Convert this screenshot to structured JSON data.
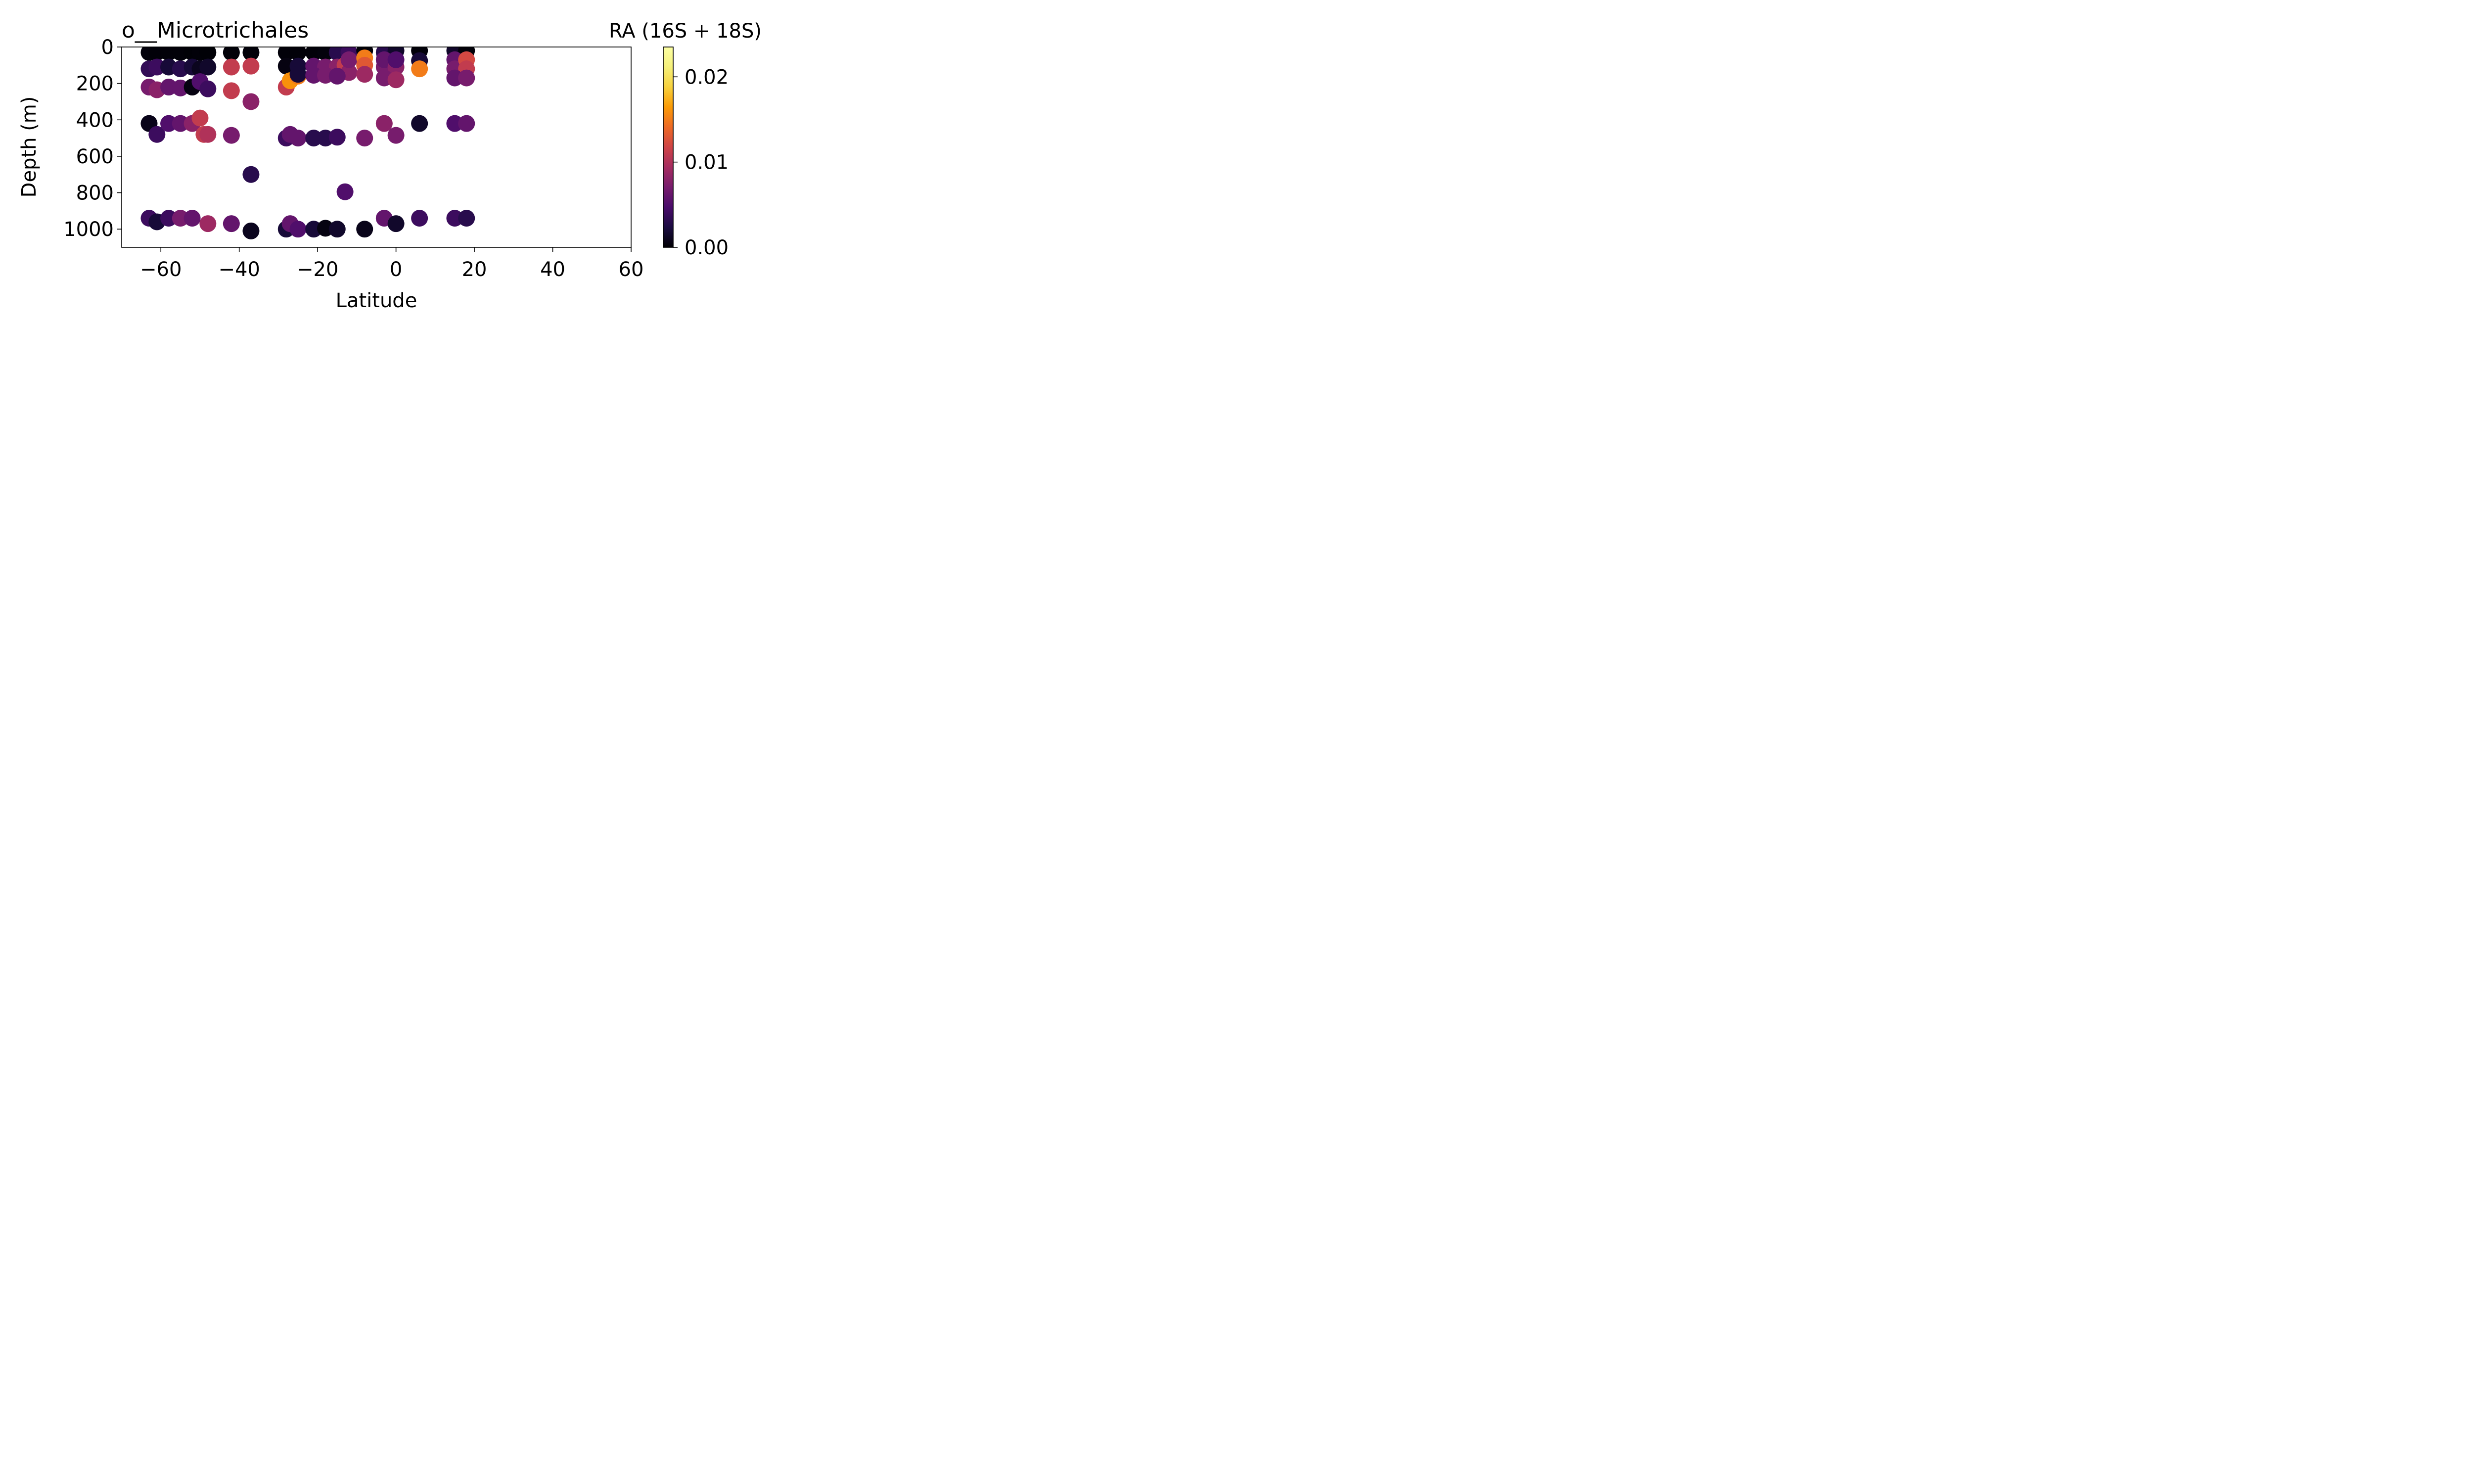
{
  "chart_data": {
    "type": "scatter",
    "title": "o__Microtrichales",
    "colorbar_title": "RA (16S + 18S)",
    "xlabel": "Latitude",
    "ylabel": "Depth (m)",
    "xlim": [
      -70,
      60
    ],
    "ylim": [
      1100,
      0
    ],
    "y_inverted": true,
    "xticks": [
      -60,
      -40,
      -20,
      0,
      20,
      40,
      60
    ],
    "yticks": [
      0,
      200,
      400,
      600,
      800,
      1000
    ],
    "xtick_labels": [
      "−60",
      "−40",
      "−20",
      "0",
      "20",
      "40",
      "60"
    ],
    "ytick_labels": [
      "0",
      "200",
      "400",
      "600",
      "800",
      "1000"
    ],
    "colormap": "inferno",
    "color_range": [
      0,
      0.0235
    ],
    "colorbar_ticks": [
      0.0,
      0.01,
      0.02
    ],
    "colorbar_tick_labels": [
      "0.00",
      "0.01",
      "0.02"
    ],
    "grid": false,
    "points": [
      {
        "x": -63,
        "y": 30,
        "ra": 0.0003
      },
      {
        "x": -61,
        "y": 30,
        "ra": 0.0002
      },
      {
        "x": -58,
        "y": 30,
        "ra": 0.0002
      },
      {
        "x": -55,
        "y": 30,
        "ra": 0.0002
      },
      {
        "x": -52,
        "y": 30,
        "ra": 0.0001
      },
      {
        "x": -50,
        "y": 30,
        "ra": 0.0002
      },
      {
        "x": -48,
        "y": 30,
        "ra": 0.0001
      },
      {
        "x": -42,
        "y": 30,
        "ra": 0.0002
      },
      {
        "x": -37,
        "y": 30,
        "ra": 0.0002
      },
      {
        "x": -28,
        "y": 30,
        "ra": 0.0002
      },
      {
        "x": -25,
        "y": 30,
        "ra": 0.0002
      },
      {
        "x": -21,
        "y": 30,
        "ra": 0.0002
      },
      {
        "x": -18,
        "y": 30,
        "ra": 0.0003
      },
      {
        "x": -15,
        "y": 30,
        "ra": 0.003
      },
      {
        "x": -12,
        "y": 30,
        "ra": 0.004
      },
      {
        "x": -8,
        "y": 20,
        "ra": 0.0002
      },
      {
        "x": -3,
        "y": 30,
        "ra": 0.003
      },
      {
        "x": 0,
        "y": 20,
        "ra": 0.0015
      },
      {
        "x": 6,
        "y": 20,
        "ra": 0.0002
      },
      {
        "x": 15,
        "y": 20,
        "ra": 0.0015
      },
      {
        "x": 18,
        "y": 20,
        "ra": 0.0002
      },
      {
        "x": -63,
        "y": 120,
        "ra": 0.0035
      },
      {
        "x": -61,
        "y": 110,
        "ra": 0.004
      },
      {
        "x": -58,
        "y": 110,
        "ra": 0.002
      },
      {
        "x": -55,
        "y": 120,
        "ra": 0.003
      },
      {
        "x": -52,
        "y": 110,
        "ra": 0.002
      },
      {
        "x": -50,
        "y": 120,
        "ra": 0.001
      },
      {
        "x": -48,
        "y": 110,
        "ra": 0.0015
      },
      {
        "x": -42,
        "y": 110,
        "ra": 0.011
      },
      {
        "x": -37,
        "y": 105,
        "ra": 0.011
      },
      {
        "x": -28,
        "y": 105,
        "ra": 0.0005
      },
      {
        "x": -25,
        "y": 105,
        "ra": 0.002
      },
      {
        "x": -21,
        "y": 105,
        "ra": 0.006
      },
      {
        "x": -18,
        "y": 110,
        "ra": 0.007
      },
      {
        "x": -15,
        "y": 110,
        "ra": 0.008
      },
      {
        "x": -13,
        "y": 100,
        "ra": 0.011
      },
      {
        "x": -12,
        "y": 140,
        "ra": 0.008
      },
      {
        "x": -12,
        "y": 70,
        "ra": 0.007
      },
      {
        "x": -8,
        "y": 60,
        "ra": 0.015
      },
      {
        "x": -8,
        "y": 100,
        "ra": 0.013
      },
      {
        "x": -3,
        "y": 110,
        "ra": 0.007
      },
      {
        "x": -3,
        "y": 70,
        "ra": 0.006
      },
      {
        "x": 0,
        "y": 110,
        "ra": 0.008
      },
      {
        "x": 0,
        "y": 70,
        "ra": 0.005
      },
      {
        "x": 6,
        "y": 75,
        "ra": 0.002
      },
      {
        "x": 6,
        "y": 120,
        "ra": 0.015
      },
      {
        "x": 15,
        "y": 70,
        "ra": 0.006
      },
      {
        "x": 15,
        "y": 120,
        "ra": 0.007
      },
      {
        "x": 18,
        "y": 70,
        "ra": 0.012
      },
      {
        "x": 18,
        "y": 120,
        "ra": 0.011
      },
      {
        "x": -63,
        "y": 220,
        "ra": 0.007
      },
      {
        "x": -61,
        "y": 235,
        "ra": 0.008
      },
      {
        "x": -58,
        "y": 220,
        "ra": 0.006
      },
      {
        "x": -55,
        "y": 225,
        "ra": 0.006
      },
      {
        "x": -52,
        "y": 220,
        "ra": 0.0005
      },
      {
        "x": -50,
        "y": 190,
        "ra": 0.005
      },
      {
        "x": -48,
        "y": 230,
        "ra": 0.004
      },
      {
        "x": -42,
        "y": 240,
        "ra": 0.011
      },
      {
        "x": -37,
        "y": 300,
        "ra": 0.008
      },
      {
        "x": -28,
        "y": 220,
        "ra": 0.011
      },
      {
        "x": -27,
        "y": 185,
        "ra": 0.016
      },
      {
        "x": -25,
        "y": 160,
        "ra": 0.015
      },
      {
        "x": -25,
        "y": 150,
        "ra": 0.002
      },
      {
        "x": -21,
        "y": 155,
        "ra": 0.006
      },
      {
        "x": -18,
        "y": 155,
        "ra": 0.007
      },
      {
        "x": -15,
        "y": 160,
        "ra": 0.006
      },
      {
        "x": -8,
        "y": 150,
        "ra": 0.009
      },
      {
        "x": -3,
        "y": 170,
        "ra": 0.007
      },
      {
        "x": 0,
        "y": 180,
        "ra": 0.009
      },
      {
        "x": 15,
        "y": 170,
        "ra": 0.006
      },
      {
        "x": 18,
        "y": 170,
        "ra": 0.007
      },
      {
        "x": -63,
        "y": 420,
        "ra": 0.0008
      },
      {
        "x": -61,
        "y": 480,
        "ra": 0.004
      },
      {
        "x": -58,
        "y": 420,
        "ra": 0.005
      },
      {
        "x": -55,
        "y": 420,
        "ra": 0.006
      },
      {
        "x": -52,
        "y": 420,
        "ra": 0.008
      },
      {
        "x": -50,
        "y": 390,
        "ra": 0.011
      },
      {
        "x": -49,
        "y": 480,
        "ra": 0.011
      },
      {
        "x": -48,
        "y": 480,
        "ra": 0.01
      },
      {
        "x": -42,
        "y": 485,
        "ra": 0.007
      },
      {
        "x": -28,
        "y": 500,
        "ra": 0.004
      },
      {
        "x": -27,
        "y": 480,
        "ra": 0.006
      },
      {
        "x": -25,
        "y": 500,
        "ra": 0.006
      },
      {
        "x": -21,
        "y": 500,
        "ra": 0.003
      },
      {
        "x": -18,
        "y": 500,
        "ra": 0.003
      },
      {
        "x": -15,
        "y": 495,
        "ra": 0.004
      },
      {
        "x": -8,
        "y": 500,
        "ra": 0.007
      },
      {
        "x": -3,
        "y": 420,
        "ra": 0.008
      },
      {
        "x": 0,
        "y": 485,
        "ra": 0.007
      },
      {
        "x": 6,
        "y": 420,
        "ra": 0.0015
      },
      {
        "x": 15,
        "y": 420,
        "ra": 0.005
      },
      {
        "x": 18,
        "y": 420,
        "ra": 0.006
      },
      {
        "x": -37,
        "y": 700,
        "ra": 0.003
      },
      {
        "x": -13,
        "y": 795,
        "ra": 0.005
      },
      {
        "x": -63,
        "y": 940,
        "ra": 0.004
      },
      {
        "x": -61,
        "y": 960,
        "ra": 0.002
      },
      {
        "x": -58,
        "y": 940,
        "ra": 0.004
      },
      {
        "x": -55,
        "y": 940,
        "ra": 0.007
      },
      {
        "x": -52,
        "y": 940,
        "ra": 0.006
      },
      {
        "x": -48,
        "y": 970,
        "ra": 0.009
      },
      {
        "x": -42,
        "y": 970,
        "ra": 0.006
      },
      {
        "x": -37,
        "y": 1010,
        "ra": 0.001
      },
      {
        "x": -28,
        "y": 1000,
        "ra": 0.002
      },
      {
        "x": -27,
        "y": 970,
        "ra": 0.006
      },
      {
        "x": -25,
        "y": 1000,
        "ra": 0.005
      },
      {
        "x": -21,
        "y": 1000,
        "ra": 0.002
      },
      {
        "x": -18,
        "y": 995,
        "ra": 0.0005
      },
      {
        "x": -15,
        "y": 1000,
        "ra": 0.0015
      },
      {
        "x": -8,
        "y": 1000,
        "ra": 0.0008
      },
      {
        "x": -3,
        "y": 940,
        "ra": 0.006
      },
      {
        "x": 0,
        "y": 970,
        "ra": 0.0015
      },
      {
        "x": 6,
        "y": 940,
        "ra": 0.004
      },
      {
        "x": 15,
        "y": 940,
        "ra": 0.004
      },
      {
        "x": 18,
        "y": 940,
        "ra": 0.003
      }
    ]
  }
}
